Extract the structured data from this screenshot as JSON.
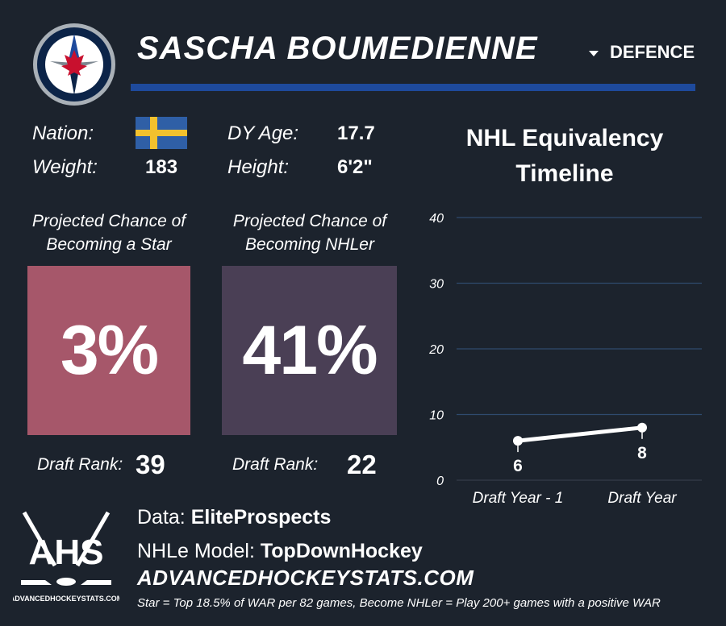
{
  "header": {
    "player_name": "SASCHA BOUMEDIENNE",
    "position": "DEFENCE",
    "team_logo_icon": "winnipeg-jets-logo-icon",
    "accent_color": "#1e4a9c"
  },
  "bio": {
    "nation_label": "Nation:",
    "nation_flag_icon": "sweden-flag-icon",
    "weight_label": "Weight:",
    "weight_value": "183",
    "age_label": "DY Age:",
    "age_value": "17.7",
    "height_label": "Height:",
    "height_value": "6'2\""
  },
  "star_card": {
    "caption_line1": "Projected Chance of",
    "caption_line2": "Becoming a Star",
    "value": "3%",
    "color": "#a6576a",
    "rank_label": "Draft Rank:",
    "rank_value": "39"
  },
  "nhl_card": {
    "caption_line1": "Projected Chance of",
    "caption_line2": "Becoming NHLer",
    "value": "41%",
    "color": "#4a3f55",
    "rank_label": "Draft Rank:",
    "rank_value": "22"
  },
  "chart_data": {
    "type": "line",
    "title_line1": "NHL Equivalency",
    "title_line2": "Timeline",
    "categories": [
      "Draft Year - 1",
      "Draft Year"
    ],
    "series": [
      {
        "values": [
          6,
          8
        ]
      }
    ],
    "data_labels": [
      "6",
      "8"
    ],
    "yticks": [
      "0",
      "10",
      "20",
      "30",
      "40"
    ],
    "ylim": [
      0,
      40
    ],
    "grid": true,
    "line_color": "#ffffff",
    "grid_color": "#2f4a6e"
  },
  "footer": {
    "data_label": "Data: ",
    "data_value": "EliteProspects",
    "model_label": "NHLe Model: ",
    "model_value": "TopDownHockey",
    "site": "ADVANCEDHOCKEYSTATS.COM",
    "footnote": "Star = Top 18.5% of WAR per 82 games, Become NHLer = Play 200+ games with a positive WAR",
    "brand_logo_icon": "ahs-logo-icon",
    "brand_logo_letters": "AHS",
    "brand_logo_caption": "ADVANCEDHOCKEYSTATS.COM"
  }
}
